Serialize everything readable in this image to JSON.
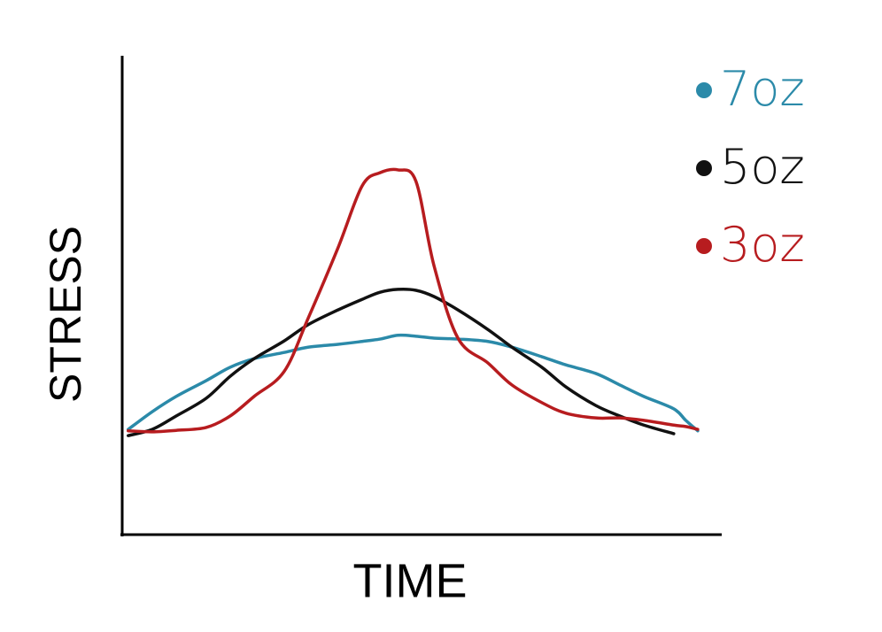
{
  "chart_data": {
    "type": "line",
    "x_label": "TIME",
    "y_label": "STRESS",
    "xlim": [
      0,
      100
    ],
    "ylim": [
      0,
      100
    ],
    "x": [
      1,
      5,
      9,
      14,
      18,
      22,
      27,
      31,
      36,
      40,
      43,
      46,
      49,
      52,
      56,
      61,
      65,
      70,
      74,
      79,
      83,
      87,
      92,
      94,
      96
    ],
    "series": [
      {
        "name": "7oz",
        "color": "#2b8aa9",
        "values": [
          22.2,
          25.9,
          29.1,
          32.4,
          35.2,
          37.0,
          38.3,
          39.4,
          40.0,
          40.6,
          41.1,
          41.9,
          41.7,
          41.3,
          41.1,
          40.6,
          39.4,
          37.4,
          35.7,
          33.9,
          31.5,
          29.1,
          26.5,
          24.1,
          21.9
        ]
      },
      {
        "name": "5oz",
        "color": "#111111",
        "values": [
          20.9,
          22.2,
          25.0,
          28.7,
          33.3,
          37.0,
          40.7,
          44.1,
          47.2,
          49.4,
          50.9,
          51.5,
          51.3,
          50.0,
          47.2,
          43.1,
          39.4,
          35.2,
          31.1,
          27.2,
          25.0,
          23.1,
          21.3,
          null,
          null
        ]
      },
      {
        "name": "3oz",
        "color": "#b71c1f",
        "values": [
          21.9,
          21.7,
          22.0,
          22.6,
          25.0,
          29.1,
          34.3,
          45.4,
          60.2,
          73.1,
          75.9,
          76.5,
          74.1,
          56.5,
          41.3,
          36.1,
          31.5,
          27.8,
          25.6,
          24.6,
          24.6,
          24.1,
          23.1,
          22.8,
          22.2
        ]
      }
    ],
    "legend": "top-right"
  }
}
